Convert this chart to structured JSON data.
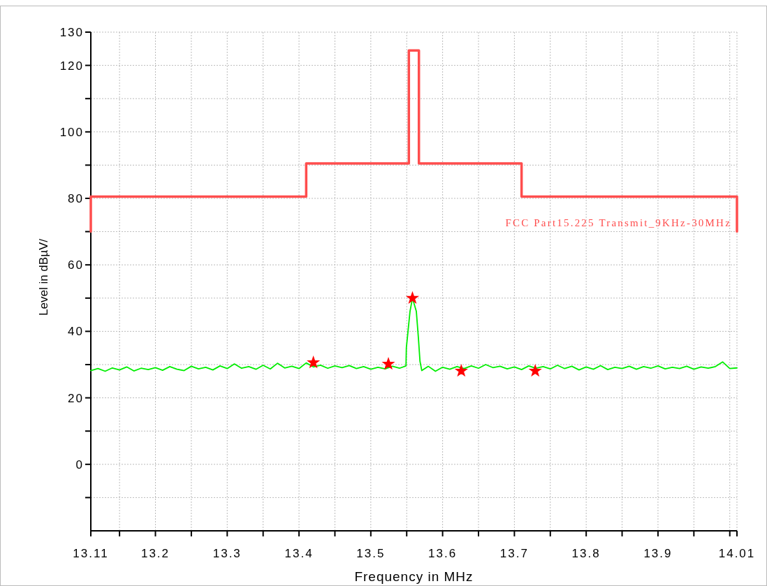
{
  "chart_data": {
    "type": "line",
    "xlabel": "Frequency in MHz",
    "ylabel": "Level in dBµV/",
    "xlim": [
      13.11,
      14.01
    ],
    "ylim": [
      -20,
      130
    ],
    "xticks": [
      13.11,
      {
        "value": 13.15,
        "label": null
      },
      13.2,
      {
        "value": 13.25,
        "label": null
      },
      13.3,
      {
        "value": 13.35,
        "label": null
      },
      13.4,
      {
        "value": 13.45,
        "label": null
      },
      13.5,
      {
        "value": 13.55,
        "label": null
      },
      13.6,
      {
        "value": 13.65,
        "label": null
      },
      13.7,
      {
        "value": 13.75,
        "label": null
      },
      13.8,
      {
        "value": 13.85,
        "label": null
      },
      13.9,
      {
        "value": 13.95,
        "label": null
      },
      {
        "value": 14.0,
        "label": null
      },
      14.01
    ],
    "yticks": [
      {
        "value": -10,
        "label": null
      },
      0,
      {
        "value": 10,
        "label": null
      },
      20,
      {
        "value": 30,
        "label": null
      },
      40,
      {
        "value": 50,
        "label": null
      },
      60,
      {
        "value": 70,
        "label": null
      },
      80,
      {
        "value": 90,
        "label": null
      },
      100,
      {
        "value": 110,
        "label": null
      },
      120,
      130
    ],
    "grid": true,
    "legend": false,
    "series": [
      {
        "name": "FCC Part15.225 Transmit_9KHz-30MHz",
        "color": "#ff4d4d",
        "x": [
          13.11,
          13.11,
          13.41,
          13.41,
          13.553,
          13.553,
          13.567,
          13.567,
          13.71,
          13.71,
          14.01,
          14.01
        ],
        "values": [
          70,
          80.5,
          80.5,
          90.5,
          90.5,
          124.5,
          124.5,
          90.5,
          90.5,
          80.5,
          80.5,
          70
        ]
      },
      {
        "color": "#00ee00",
        "x": [
          13.11,
          13.12,
          13.13,
          13.14,
          13.15,
          13.16,
          13.17,
          13.18,
          13.19,
          13.2,
          13.21,
          13.22,
          13.23,
          13.24,
          13.25,
          13.26,
          13.27,
          13.28,
          13.29,
          13.3,
          13.31,
          13.32,
          13.33,
          13.34,
          13.35,
          13.36,
          13.37,
          13.38,
          13.39,
          13.4,
          13.41,
          13.42,
          13.43,
          13.44,
          13.45,
          13.46,
          13.47,
          13.48,
          13.49,
          13.5,
          13.51,
          13.52,
          13.53,
          13.54,
          13.549,
          13.5495,
          13.5546,
          13.558,
          13.5634,
          13.5663,
          13.5685,
          13.571,
          13.58,
          13.59,
          13.6,
          13.61,
          13.62,
          13.63,
          13.64,
          13.65,
          13.66,
          13.67,
          13.68,
          13.69,
          13.7,
          13.71,
          13.72,
          13.73,
          13.74,
          13.75,
          13.76,
          13.77,
          13.78,
          13.79,
          13.8,
          13.81,
          13.82,
          13.83,
          13.84,
          13.85,
          13.86,
          13.87,
          13.88,
          13.89,
          13.9,
          13.91,
          13.92,
          13.93,
          13.94,
          13.95,
          13.96,
          13.97,
          13.98,
          13.99,
          14.0,
          14.01
        ],
        "values": [
          28.2,
          28.8,
          28.0,
          29.0,
          28.4,
          29.3,
          28.1,
          28.9,
          28.5,
          29.1,
          28.3,
          29.4,
          28.6,
          28.2,
          29.5,
          28.7,
          29.2,
          28.4,
          29.6,
          28.8,
          30.2,
          28.9,
          29.4,
          28.6,
          29.8,
          28.7,
          30.4,
          29.0,
          29.5,
          28.8,
          30.5,
          29.3,
          29.8,
          28.9,
          29.6,
          29.1,
          29.7,
          28.8,
          29.4,
          28.6,
          29.2,
          28.7,
          29.5,
          28.9,
          29.6,
          35,
          46,
          50,
          46,
          38,
          31,
          28.2,
          29.5,
          28.0,
          29.2,
          28.6,
          29.4,
          28.8,
          29.6,
          28.9,
          30.0,
          29.1,
          29.5,
          28.7,
          29.3,
          28.5,
          29.6,
          28.9,
          29.4,
          28.7,
          29.8,
          28.8,
          29.5,
          28.4,
          29.3,
          28.6,
          29.7,
          28.5,
          29.2,
          28.8,
          29.5,
          28.6,
          29.4,
          28.9,
          29.6,
          28.7,
          29.2,
          28.8,
          29.5,
          28.6,
          29.3,
          28.9,
          29.4,
          30.8,
          28.8,
          29.0
        ]
      },
      {
        "type": "scatter",
        "color": "#ff0000",
        "marker": "star",
        "x": [
          13.42,
          13.5245,
          13.558,
          13.626,
          13.729
        ],
        "values": [
          30.6,
          30.2,
          50.0,
          28.1,
          28.1
        ]
      }
    ]
  }
}
